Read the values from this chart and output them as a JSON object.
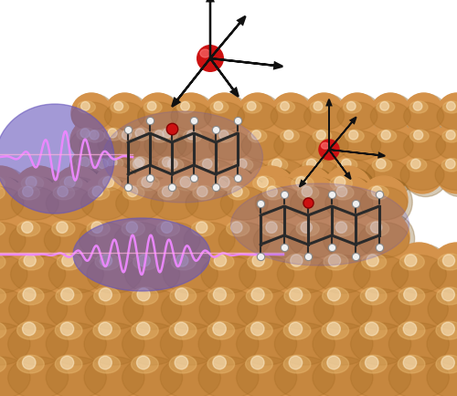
{
  "background_color": "#ffffff",
  "gold_base": "#D4924A",
  "gold_highlight": "#E8B870",
  "gold_shadow": "#A06820",
  "gold_dark_shadow": "#7A5010",
  "purple_wave": "#5544AA",
  "purple_halo": "#6655BB",
  "wave_bright": "#EE88FF",
  "wave_dark": "#AA66EE",
  "mol_bond": "#2a2a2a",
  "mol_H": "#f0f0f0",
  "mol_red": "#CC1111",
  "arrow_col": "#111111"
}
